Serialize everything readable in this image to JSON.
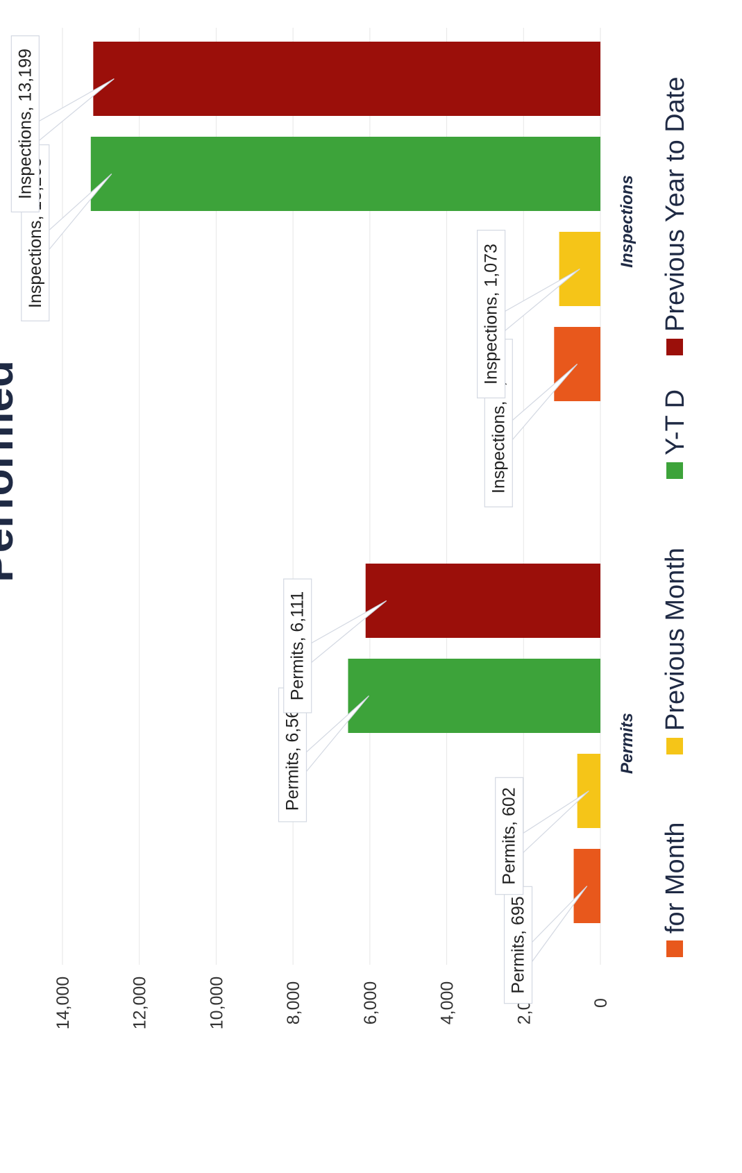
{
  "title_fragment": "Performed",
  "chart_data": {
    "type": "bar",
    "orientation": "rotated-90",
    "categories": [
      "Permits",
      "Inspections"
    ],
    "series": [
      {
        "name": "for Month",
        "color": "#e8581c",
        "values": [
          695,
          1205
        ]
      },
      {
        "name": "Previous Month",
        "color": "#f5c518",
        "values": [
          602,
          1073
        ]
      },
      {
        "name": "Y-T D",
        "color": "#3da33a",
        "values": [
          6567,
          13263
        ]
      },
      {
        "name": "Previous Year to Date",
        "color": "#9b0f0a",
        "values": [
          6111,
          13199
        ]
      }
    ],
    "data_labels": [
      [
        "Permits, 695",
        "Inspections, 1,205"
      ],
      [
        "Permits, 602",
        "Inspections, 1,073"
      ],
      [
        "Permits, 6,567",
        "Inspections, 13,263"
      ],
      [
        "Permits, 6,111",
        "Inspections, 13,199"
      ]
    ],
    "value_ticks": [
      "0",
      "2,000",
      "4,000",
      "6,000",
      "8,000",
      "10,000",
      "12,000",
      "14,000"
    ],
    "value_range": [
      0,
      14000
    ],
    "legend_position": "bottom",
    "grid": true
  }
}
